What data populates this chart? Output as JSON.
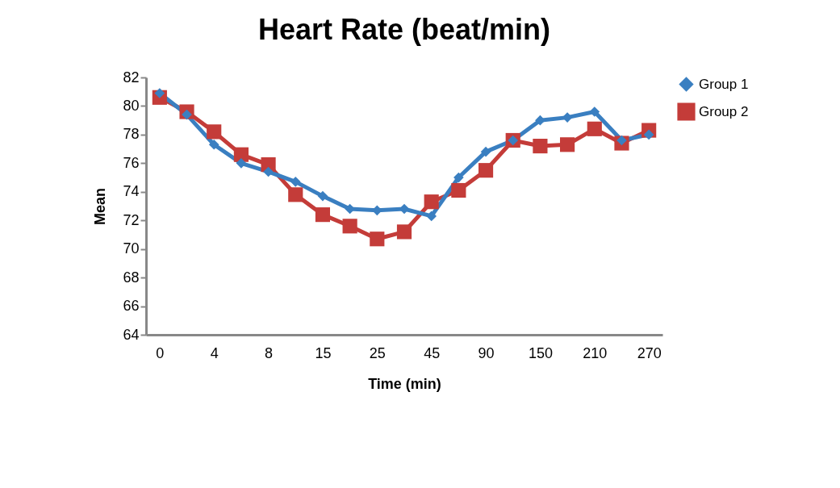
{
  "chart_data": {
    "type": "line",
    "title": "Heart Rate (beat/min)",
    "xlabel": "Time (min)",
    "ylabel": "Mean",
    "categories": [
      "0",
      null,
      "4",
      null,
      "8",
      null,
      "15",
      null,
      "25",
      null,
      "45",
      null,
      "90",
      null,
      "150",
      null,
      "210",
      null,
      "270"
    ],
    "series": [
      {
        "name": "Group 1",
        "color": "#3a7fc1",
        "marker": "diamond",
        "values": [
          80.9,
          79.4,
          77.3,
          76.0,
          75.4,
          74.7,
          73.7,
          72.8,
          72.7,
          72.8,
          72.3,
          75.0,
          76.8,
          77.6,
          79.0,
          79.2,
          79.6,
          77.6,
          78.0
        ]
      },
      {
        "name": "Group 2",
        "color": "#c43c39",
        "marker": "square",
        "values": [
          80.6,
          79.6,
          78.2,
          76.6,
          75.9,
          73.8,
          72.4,
          71.6,
          70.7,
          71.2,
          73.3,
          74.1,
          75.5,
          77.6,
          77.2,
          77.3,
          78.4,
          77.4,
          78.3
        ]
      }
    ],
    "ylim": [
      64,
      82
    ],
    "yticks": [
      64,
      66,
      68,
      70,
      72,
      74,
      76,
      78,
      80,
      82
    ],
    "grid": false,
    "legend": "right",
    "line_style": "solid"
  }
}
